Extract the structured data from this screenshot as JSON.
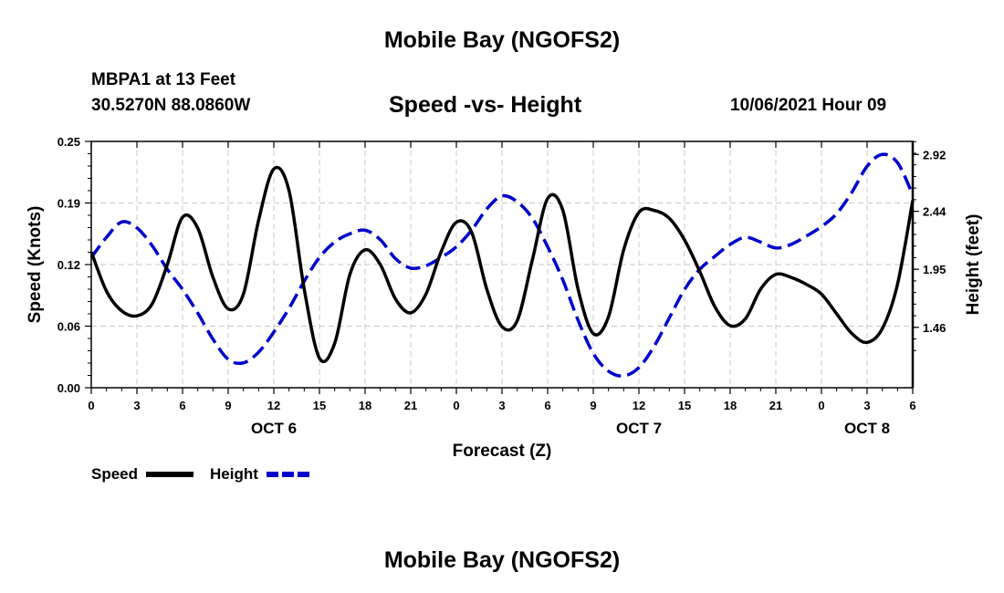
{
  "header": {
    "title": "Mobile Bay (NGOFS2)",
    "station": "MBPA1 at 13 Feet",
    "coords": "30.5270N  88.0860W",
    "subtitle": "Speed -vs- Height",
    "datetime": "10/06/2021 Hour 09",
    "footer_title": "Mobile Bay (NGOFS2)"
  },
  "chart_data": {
    "type": "line",
    "title": "Speed -vs- Height",
    "xlabel": "Forecast (Z)",
    "ylabel": "Speed (Knots)",
    "y2label": "Height (feet)",
    "xlim": [
      0,
      54
    ],
    "ylim": [
      0,
      0.25
    ],
    "y2lim": [
      0.95,
      3.03
    ],
    "x_ticks": [
      0,
      3,
      6,
      9,
      12,
      15,
      18,
      21,
      24,
      27,
      30,
      33,
      36,
      39,
      42,
      45,
      48,
      51,
      54
    ],
    "x_tick_labels": [
      "0",
      "3",
      "6",
      "9",
      "12",
      "15",
      "18",
      "21",
      "0",
      "3",
      "6",
      "9",
      "12",
      "15",
      "18",
      "21",
      "0",
      "3",
      "6"
    ],
    "date_labels": [
      {
        "x": 12,
        "label": "OCT 6"
      },
      {
        "x": 36,
        "label": "OCT 7"
      },
      {
        "x": 51,
        "label": "OCT 8"
      }
    ],
    "y_ticks": [
      0.0,
      0.0625,
      0.125,
      0.1875,
      0.25
    ],
    "y_tick_labels": [
      "0.00",
      "0.06",
      "0.12",
      "0.19",
      "0.25"
    ],
    "y2_ticks": [
      1.46,
      1.95,
      2.44,
      2.92
    ],
    "y2_tick_labels": [
      "1.46",
      "1.95",
      "2.44",
      "2.92"
    ],
    "grid": true,
    "legend": "bottom-left",
    "series": [
      {
        "name": "Speed",
        "axis": "left",
        "color": "#000000",
        "style": "solid",
        "x": [
          0,
          1,
          2,
          3,
          4,
          5,
          6,
          7,
          8,
          9,
          10,
          11,
          12,
          13,
          14,
          15,
          16,
          17,
          18,
          19,
          20,
          21,
          22,
          23,
          24,
          25,
          26,
          27,
          28,
          29,
          30,
          31,
          32,
          33,
          34,
          35,
          36,
          37,
          38,
          39,
          40,
          41,
          42,
          43,
          44,
          45,
          46,
          47,
          48,
          49,
          50,
          51,
          52,
          53,
          54
        ],
        "values": [
          0.138,
          0.098,
          0.078,
          0.073,
          0.085,
          0.125,
          0.173,
          0.162,
          0.112,
          0.08,
          0.095,
          0.17,
          0.222,
          0.2,
          0.1,
          0.03,
          0.045,
          0.115,
          0.14,
          0.125,
          0.09,
          0.076,
          0.095,
          0.138,
          0.168,
          0.158,
          0.1,
          0.062,
          0.068,
          0.13,
          0.192,
          0.18,
          0.1,
          0.055,
          0.072,
          0.14,
          0.178,
          0.18,
          0.172,
          0.15,
          0.118,
          0.082,
          0.063,
          0.07,
          0.1,
          0.115,
          0.112,
          0.105,
          0.095,
          0.075,
          0.055,
          0.046,
          0.06,
          0.105,
          0.19
        ]
      },
      {
        "name": "Height",
        "axis": "right",
        "color": "#0000cc",
        "style": "dashed",
        "x": [
          0,
          1,
          2,
          3,
          4,
          5,
          6,
          7,
          8,
          9,
          10,
          11,
          12,
          13,
          14,
          15,
          16,
          17,
          18,
          19,
          20,
          21,
          22,
          23,
          24,
          25,
          26,
          27,
          28,
          29,
          30,
          31,
          32,
          33,
          34,
          35,
          36,
          37,
          38,
          39,
          40,
          41,
          42,
          43,
          44,
          45,
          46,
          47,
          48,
          49,
          50,
          51,
          52,
          53,
          54
        ],
        "values": [
          2.05,
          2.22,
          2.35,
          2.3,
          2.15,
          1.95,
          1.78,
          1.58,
          1.36,
          1.19,
          1.16,
          1.25,
          1.42,
          1.62,
          1.85,
          2.05,
          2.18,
          2.25,
          2.28,
          2.2,
          2.04,
          1.96,
          1.98,
          2.05,
          2.14,
          2.28,
          2.46,
          2.57,
          2.52,
          2.38,
          2.14,
          1.86,
          1.52,
          1.24,
          1.09,
          1.05,
          1.12,
          1.3,
          1.54,
          1.78,
          1.95,
          2.06,
          2.16,
          2.22,
          2.18,
          2.13,
          2.16,
          2.23,
          2.31,
          2.42,
          2.6,
          2.82,
          2.92,
          2.85,
          2.58
        ]
      }
    ],
    "legend_entries": [
      {
        "label": "Speed",
        "color": "#000000",
        "style": "solid"
      },
      {
        "label": "Height",
        "color": "#0000cc",
        "style": "dashed"
      }
    ]
  }
}
